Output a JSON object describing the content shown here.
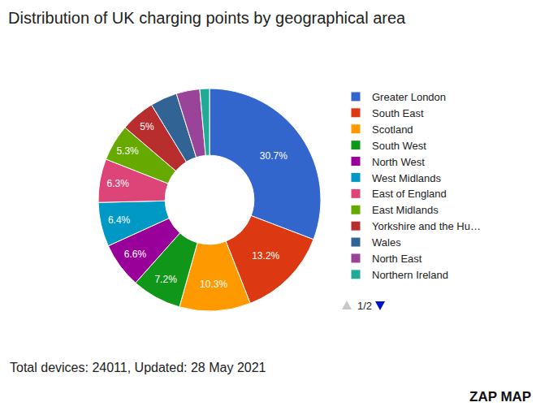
{
  "chart_data": {
    "type": "pie",
    "title": "Distribution of UK charging points by geographical area",
    "categories": [
      "Greater London",
      "South East",
      "Scotland",
      "South West",
      "North West",
      "West Midlands",
      "East of England",
      "East Midlands",
      "Yorkshire and the Hu…",
      "Wales",
      "North East",
      "Northern Ireland"
    ],
    "values": [
      30.7,
      13.2,
      10.3,
      7.2,
      6.6,
      6.4,
      6.3,
      5.3,
      5,
      3.9,
      3.4,
      1.4
    ],
    "value_labels": [
      "30.7%",
      "13.2%",
      "10.3%",
      "7.2%",
      "6.6%",
      "6.4%",
      "6.3%",
      "5.3%",
      "5%",
      null,
      null,
      null
    ],
    "colors": [
      "#3366cc",
      "#dc3912",
      "#ff9900",
      "#109618",
      "#990099",
      "#0099c6",
      "#dd4477",
      "#66aa00",
      "#b82e2e",
      "#316395",
      "#994499",
      "#22aa99"
    ],
    "data_labels": true,
    "legend": "right",
    "annotations": [
      {
        "text": "1/2"
      },
      {
        "text": "Total devices: 24011, Updated: 28 May 2021"
      },
      {
        "text": "ZAP MAP"
      }
    ]
  }
}
